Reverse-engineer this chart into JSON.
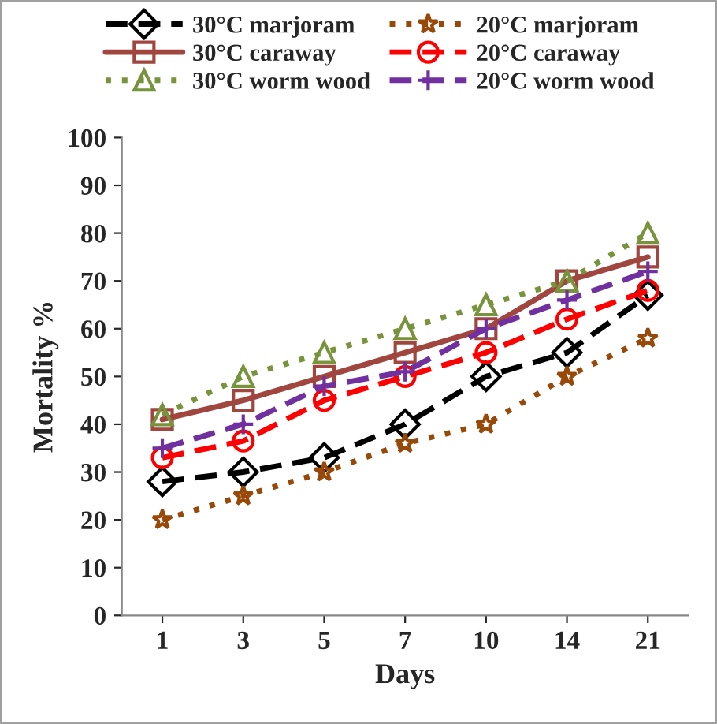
{
  "chart_data": {
    "type": "line",
    "xlabel": "Days",
    "ylabel": "Mortality %",
    "categories": [
      "1",
      "3",
      "5",
      "7",
      "10",
      "14",
      "21"
    ],
    "series": [
      {
        "name": "30°C marjoram",
        "color": "#000000",
        "marker": "diamond",
        "line_style": "dashed",
        "values": [
          28,
          30,
          33,
          40,
          50,
          55,
          67
        ]
      },
      {
        "name": "30°C caraway",
        "color": "#a0463e",
        "marker": "square",
        "line_style": "solid",
        "values": [
          41,
          45,
          50,
          55,
          60,
          70,
          75
        ]
      },
      {
        "name": "30°C worm wood",
        "color": "#77933c",
        "marker": "triangle",
        "line_style": "dotted",
        "values": [
          42,
          50,
          55,
          60,
          65,
          70,
          80
        ]
      },
      {
        "name": "20°C marjoram",
        "color": "#984807",
        "marker": "star",
        "line_style": "dotted",
        "values": [
          20,
          25,
          30,
          36,
          40,
          50,
          58
        ]
      },
      {
        "name": "20°C caraway",
        "color": "#ff0000",
        "marker": "circle",
        "line_style": "dashed",
        "values": [
          33,
          36.5,
          45,
          50,
          55,
          62,
          68
        ]
      },
      {
        "name": "20°C worm wood",
        "color": "#7030a0",
        "marker": "cross",
        "line_style": "dashed",
        "values": [
          35,
          40,
          48,
          51,
          60,
          66,
          72
        ]
      }
    ],
    "ylim": [
      0,
      100
    ],
    "yticks": [
      0,
      10,
      20,
      30,
      40,
      50,
      60,
      70,
      80,
      90,
      100
    ],
    "grid": false,
    "legend": "top"
  }
}
